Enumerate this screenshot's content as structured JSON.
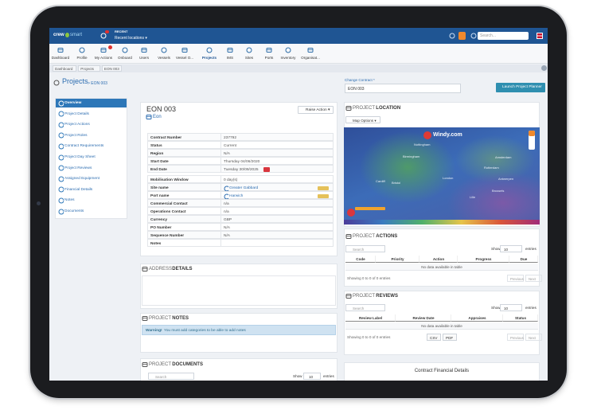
{
  "header": {
    "logo": [
      "crew",
      "smart"
    ],
    "recent_label": "RECENT",
    "recent_locations": "Recent locations ▾",
    "search_placeholder": "Search..."
  },
  "menu": {
    "active": 7,
    "items": [
      "Dashboard",
      "Profile",
      "My Actions",
      "Onboard",
      "Users",
      "Vessels",
      "Vessel O...",
      "Projects",
      "IMS",
      "Sites",
      "Ports",
      "Inventory",
      "Organisat..."
    ]
  },
  "breadcrumb": [
    "Dashboard",
    "Projects",
    "EON 003"
  ],
  "page": {
    "title": "Projects",
    "subtitle": "> EON 003",
    "change_contract_label": "Change Contract *",
    "change_contract_value": "EON 003",
    "launch_button": "Launch Project Planner"
  },
  "sidebar": {
    "active": 0,
    "items": [
      "Overview",
      "Project Details",
      "Project Actions",
      "Project Roles",
      "Contract Requirements",
      "Project Day Sheet",
      "Project Reviews",
      "Assigned Equipment",
      "Financial Details",
      "Notes",
      "Documents"
    ]
  },
  "project": {
    "title": "EON 003",
    "client": "Eon",
    "raise_action": "Raise Action ▾",
    "rows": [
      {
        "label": "Contract Number",
        "value": "237792"
      },
      {
        "label": "Status",
        "value": "Current"
      },
      {
        "label": "Region",
        "value": "N/A"
      },
      {
        "label": "Start Date",
        "value": "Thursday 04/06/2020"
      },
      {
        "label": "End Date",
        "value": "Tuesday 30/09/2025",
        "badge": true
      },
      {
        "label": "Mobilisation Window",
        "value": "0 day(s)"
      },
      {
        "label": "Site name",
        "value": "Greater Gabbard",
        "link": true
      },
      {
        "label": "Port name",
        "value": "Harwich",
        "link": true
      },
      {
        "label": "Commercial Contact",
        "value": "n/a"
      },
      {
        "label": "Operations Contact",
        "value": "n/a"
      },
      {
        "label": "Currency",
        "value": "GBP"
      },
      {
        "label": "PO Number",
        "value": "N/A"
      },
      {
        "label": "Sequence Number",
        "value": "N/A"
      },
      {
        "label": "Notes"
      }
    ]
  },
  "address": {
    "title": [
      "ADDRESS",
      "DETAILS"
    ]
  },
  "notes": {
    "title": [
      "PROJECT",
      "NOTES"
    ],
    "warning_strong": "Warning!",
    "warning": "You must add categories to be able to add notes"
  },
  "documents": {
    "title": [
      "PROJECT",
      "DOCUMENTS"
    ],
    "search": "Search",
    "show": "Show",
    "length": "10",
    "entries": "entries"
  },
  "location": {
    "title": [
      "PROJECT",
      "LOCATION"
    ],
    "map_options": "Map Options ▾",
    "brand": "Windy.com",
    "places": [
      "Nottingham",
      "Birmingham",
      "Cardiff",
      "Bristol",
      "London",
      "Rotterdam",
      "Amsterdam",
      "Antwerpen",
      "Brussels",
      "Lille"
    ]
  },
  "actions": {
    "title": [
      "PROJECT",
      "ACTIONS"
    ],
    "show": "Show",
    "length": "10",
    "entries": "entries",
    "search": "Search",
    "columns": [
      "Code",
      "Priority",
      "Action",
      "Progress",
      "Due"
    ],
    "empty": "No data available in table",
    "info": "Showing 0 to 0 of 0 entries",
    "prev": "Previous",
    "next": "Next"
  },
  "reviews": {
    "title": [
      "PROJECT",
      "REVIEWS"
    ],
    "show": "Show",
    "length": "10",
    "entries": "entries",
    "search": "Search",
    "columns": [
      "Review Label",
      "Review Date",
      "Appraises",
      "Status"
    ],
    "empty": "No data available in table",
    "info": "Showing 0 to 0 of 0 entries",
    "buttons": [
      "CSV",
      "PDF"
    ],
    "prev": "Previous",
    "next": "Next"
  },
  "financial": {
    "title": "Contract Financial Details"
  }
}
